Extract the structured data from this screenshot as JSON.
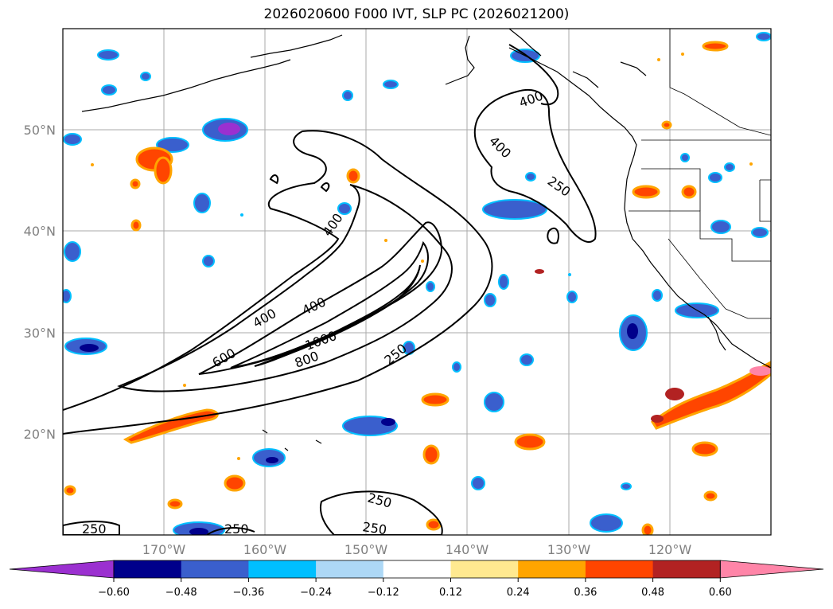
{
  "title": "2026020600 F000 IVT, SLP PC (2026021200)",
  "map": {
    "lon_range": [
      -180,
      -110
    ],
    "lat_range": [
      10,
      60
    ],
    "lat_labels": [
      "50°N",
      "40°N",
      "30°N",
      "20°N"
    ],
    "lon_labels": [
      "170°W",
      "160°W",
      "150°W",
      "140°W",
      "130°W",
      "120°W"
    ],
    "grid": true,
    "contour_labels": [
      "400",
      "400",
      "400",
      "400",
      "400",
      "600",
      "1000",
      "800",
      "250",
      "250",
      "250",
      "250",
      "250"
    ]
  },
  "colorbar": {
    "colors": [
      "#9b30d0",
      "#00008b",
      "#3a5fcd",
      "#00bfff",
      "#add8f6",
      "#ffffff",
      "#ffe990",
      "#ffa500",
      "#ff4500",
      "#b22222",
      "#ff85a8"
    ],
    "tick_labels": [
      "−0.60",
      "−0.48",
      "−0.36",
      "−0.24",
      "−0.12",
      "0.12",
      "0.24",
      "0.36",
      "0.48",
      "0.60"
    ]
  },
  "chart_data": {
    "type": "heatmap",
    "title": "2026020600 F000 IVT, SLP PC (2026021200)",
    "xlim": [
      -180,
      -110
    ],
    "ylim": [
      10,
      60
    ],
    "colorbar_levels": [
      -0.6,
      -0.48,
      -0.36,
      -0.24,
      -0.12,
      0.12,
      0.24,
      0.36,
      0.48,
      0.6
    ],
    "ivt_contour_levels": [
      250,
      400,
      600,
      800,
      1000
    ]
  }
}
